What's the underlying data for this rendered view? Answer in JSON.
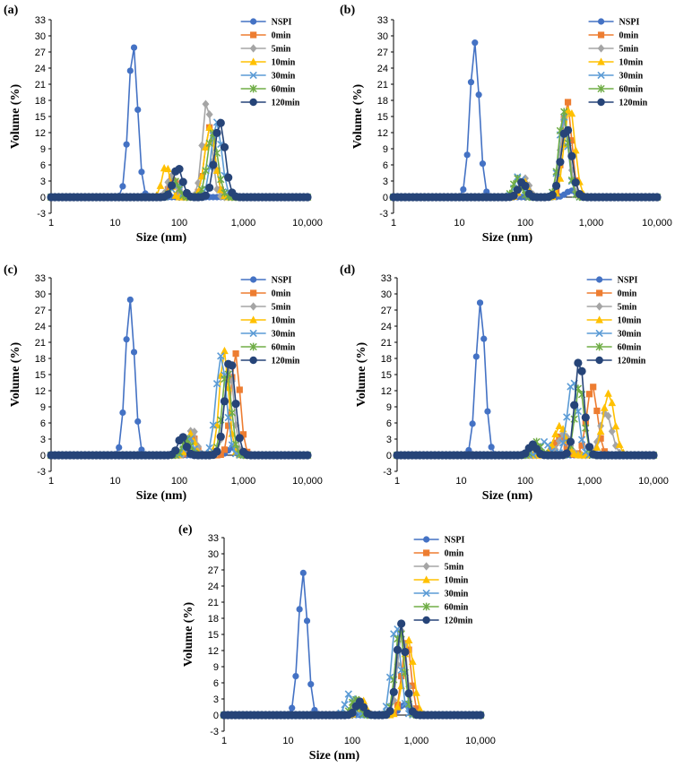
{
  "colors": {
    "NSPI": "#4472c4",
    "0min": "#ed7d31",
    "5min": "#a5a5a5",
    "10min": "#ffc000",
    "30min": "#5b9bd5",
    "60min": "#70ad47",
    "120min": "#264478"
  },
  "chart_data": [
    {
      "type": "line",
      "panel_label": "(a)",
      "xlabel": "Size (nm)",
      "ylabel": "Volume (%)",
      "xscale": "log",
      "xlim": [
        1,
        10000
      ],
      "ylim": [
        -3,
        33
      ],
      "xticks": [
        "1",
        "10",
        "100",
        "1,000",
        "10,000"
      ],
      "yticks": [
        "-3",
        "0",
        "3",
        "6",
        "9",
        "12",
        "15",
        "18",
        "21",
        "24",
        "27",
        "30",
        "33"
      ],
      "legend": [
        "NSPI",
        "0min",
        "5min",
        "10min",
        "30min",
        "60min",
        "120min"
      ],
      "series": [
        {
          "name": "NSPI",
          "marker": "circle",
          "peaks": [
            {
              "center": 19,
              "height": 28.5,
              "width": 0.07
            }
          ]
        },
        {
          "name": "0min",
          "marker": "square",
          "peaks": [
            {
              "center": 80,
              "height": 3.5,
              "width": 0.06
            },
            {
              "center": 300,
              "height": 13,
              "width": 0.08
            }
          ]
        },
        {
          "name": "5min",
          "marker": "diamond",
          "peaks": [
            {
              "center": 75,
              "height": 4,
              "width": 0.06
            },
            {
              "center": 270,
              "height": 18,
              "width": 0.07
            }
          ]
        },
        {
          "name": "10min",
          "marker": "triangle",
          "peaks": [
            {
              "center": 62,
              "height": 6,
              "width": 0.06
            },
            {
              "center": 300,
              "height": 13,
              "width": 0.08
            }
          ]
        },
        {
          "name": "30min",
          "marker": "x",
          "peaks": [
            {
              "center": 90,
              "height": 3,
              "width": 0.06
            },
            {
              "center": 380,
              "height": 14,
              "width": 0.08
            }
          ]
        },
        {
          "name": "60min",
          "marker": "star",
          "peaks": [
            {
              "center": 85,
              "height": 3,
              "width": 0.06
            },
            {
              "center": 330,
              "height": 12,
              "width": 0.08
            }
          ]
        },
        {
          "name": "120min",
          "marker": "circle",
          "peaks": [
            {
              "center": 95,
              "height": 5.5,
              "width": 0.07
            },
            {
              "center": 430,
              "height": 14,
              "width": 0.08
            }
          ]
        }
      ]
    },
    {
      "type": "line",
      "panel_label": "(b)",
      "xlabel": "Size (nm)",
      "ylabel": "Volume (%)",
      "xscale": "log",
      "xlim": [
        1,
        10000
      ],
      "ylim": [
        -3,
        33
      ],
      "xticks": [
        "1",
        "10",
        "100",
        "1,000",
        "10,000"
      ],
      "yticks": [
        "-3",
        "0",
        "3",
        "6",
        "9",
        "12",
        "15",
        "18",
        "21",
        "24",
        "27",
        "30",
        "33"
      ],
      "legend": [
        "NSPI",
        "0min",
        "5min",
        "10min",
        "30min",
        "60min",
        "120min"
      ],
      "series": [
        {
          "name": "NSPI",
          "marker": "circle",
          "peaks": [
            {
              "center": 17,
              "height": 28.8,
              "width": 0.07
            },
            {
              "center": 500,
              "height": 1.2,
              "width": 0.08
            }
          ]
        },
        {
          "name": "0min",
          "marker": "square",
          "peaks": [
            {
              "center": 90,
              "height": 3,
              "width": 0.06
            },
            {
              "center": 430,
              "height": 18,
              "width": 0.07
            }
          ]
        },
        {
          "name": "5min",
          "marker": "diamond",
          "peaks": [
            {
              "center": 100,
              "height": 3.5,
              "width": 0.06
            },
            {
              "center": 400,
              "height": 15,
              "width": 0.07
            }
          ]
        },
        {
          "name": "10min",
          "marker": "triangle",
          "peaks": [
            {
              "center": 95,
              "height": 3,
              "width": 0.06
            },
            {
              "center": 470,
              "height": 17,
              "width": 0.08
            }
          ]
        },
        {
          "name": "30min",
          "marker": "x",
          "peaks": [
            {
              "center": 80,
              "height": 4,
              "width": 0.06
            },
            {
              "center": 380,
              "height": 15,
              "width": 0.07
            }
          ]
        },
        {
          "name": "60min",
          "marker": "star",
          "peaks": [
            {
              "center": 75,
              "height": 3.5,
              "width": 0.06
            },
            {
              "center": 380,
              "height": 16,
              "width": 0.07
            }
          ]
        },
        {
          "name": "120min",
          "marker": "circle",
          "peaks": [
            {
              "center": 90,
              "height": 2.8,
              "width": 0.06
            },
            {
              "center": 420,
              "height": 13,
              "width": 0.08
            }
          ]
        }
      ]
    },
    {
      "type": "line",
      "panel_label": "(c)",
      "xlabel": "Size (nm)",
      "ylabel": "Volume (%)",
      "xscale": "log",
      "xlim": [
        1,
        10000
      ],
      "ylim": [
        -3,
        33
      ],
      "xticks": [
        "1",
        "10",
        "100",
        "1,000",
        "10,000"
      ],
      "yticks": [
        "-3",
        "0",
        "3",
        "6",
        "9",
        "12",
        "15",
        "18",
        "21",
        "24",
        "27",
        "30",
        "33"
      ],
      "legend": [
        "NSPI",
        "0min",
        "5min",
        "10min",
        "30min",
        "60min",
        "120min"
      ],
      "series": [
        {
          "name": "NSPI",
          "marker": "circle",
          "peaks": [
            {
              "center": 17,
              "height": 29,
              "width": 0.07
            },
            {
              "center": 700,
              "height": 1.5,
              "width": 0.08
            }
          ]
        },
        {
          "name": "0min",
          "marker": "square",
          "peaks": [
            {
              "center": 160,
              "height": 3.5,
              "width": 0.06
            },
            {
              "center": 750,
              "height": 19,
              "width": 0.07
            }
          ]
        },
        {
          "name": "5min",
          "marker": "diamond",
          "peaks": [
            {
              "center": 160,
              "height": 5,
              "width": 0.06
            },
            {
              "center": 600,
              "height": 17,
              "width": 0.07
            }
          ]
        },
        {
          "name": "10min",
          "marker": "triangle",
          "peaks": [
            {
              "center": 150,
              "height": 4,
              "width": 0.06
            },
            {
              "center": 500,
              "height": 19.5,
              "width": 0.07
            }
          ]
        },
        {
          "name": "30min",
          "marker": "x",
          "peaks": [
            {
              "center": 140,
              "height": 3.5,
              "width": 0.06
            },
            {
              "center": 450,
              "height": 18.5,
              "width": 0.08
            }
          ]
        },
        {
          "name": "60min",
          "marker": "star",
          "peaks": [
            {
              "center": 130,
              "height": 3,
              "width": 0.06
            },
            {
              "center": 550,
              "height": 16,
              "width": 0.07
            }
          ]
        },
        {
          "name": "120min",
          "marker": "circle",
          "peaks": [
            {
              "center": 110,
              "height": 3.5,
              "width": 0.06
            },
            {
              "center": 620,
              "height": 18,
              "width": 0.08
            }
          ]
        }
      ]
    },
    {
      "type": "line",
      "panel_label": "(d)",
      "xlabel": "Size (nm)",
      "ylabel": "Volume (%)",
      "xscale": "log",
      "xlim": [
        1,
        10000
      ],
      "ylim": [
        -3,
        33
      ],
      "xticks": [
        "1",
        "10",
        "100",
        "1,000",
        "10,000"
      ],
      "yticks": [
        "-3",
        "0",
        "3",
        "6",
        "9",
        "12",
        "15",
        "18",
        "21",
        "24",
        "27",
        "30",
        "33"
      ],
      "legend": [
        "NSPI",
        "0min",
        "5min",
        "10min",
        "30min",
        "60min",
        "120min"
      ],
      "series": [
        {
          "name": "NSPI",
          "marker": "circle",
          "peaks": [
            {
              "center": 20,
              "height": 28.5,
              "width": 0.07
            }
          ]
        },
        {
          "name": "0min",
          "marker": "square",
          "peaks": [
            {
              "center": 350,
              "height": 3.5,
              "width": 0.08
            },
            {
              "center": 1100,
              "height": 13,
              "width": 0.08
            }
          ]
        },
        {
          "name": "5min",
          "marker": "diamond",
          "peaks": [
            {
              "center": 400,
              "height": 4,
              "width": 0.08
            },
            {
              "center": 1800,
              "height": 8,
              "width": 0.09
            }
          ]
        },
        {
          "name": "10min",
          "marker": "triangle",
          "peaks": [
            {
              "center": 350,
              "height": 5.5,
              "width": 0.09
            },
            {
              "center": 2000,
              "height": 11.5,
              "width": 0.09
            }
          ]
        },
        {
          "name": "30min",
          "marker": "x",
          "peaks": [
            {
              "center": 200,
              "height": 2.5,
              "width": 0.07
            },
            {
              "center": 550,
              "height": 14,
              "width": 0.08
            }
          ]
        },
        {
          "name": "60min",
          "marker": "star",
          "peaks": [
            {
              "center": 150,
              "height": 2.5,
              "width": 0.06
            },
            {
              "center": 700,
              "height": 13,
              "width": 0.07
            }
          ]
        },
        {
          "name": "120min",
          "marker": "circle",
          "peaks": [
            {
              "center": 130,
              "height": 2,
              "width": 0.06
            },
            {
              "center": 700,
              "height": 18,
              "width": 0.07
            }
          ]
        }
      ]
    },
    {
      "type": "line",
      "panel_label": "(e)",
      "xlabel": "Size (nm)",
      "ylabel": "Volume (%)",
      "xscale": "log",
      "xlim": [
        1,
        10000
      ],
      "ylim": [
        -3,
        33
      ],
      "xticks": [
        "1",
        "10",
        "100",
        "1,000",
        "10,000"
      ],
      "yticks": [
        "-3",
        "0",
        "3",
        "6",
        "9",
        "12",
        "15",
        "18",
        "21",
        "24",
        "27",
        "30",
        "33"
      ],
      "legend": [
        "NSPI",
        "0min",
        "5min",
        "10min",
        "30min",
        "60min",
        "120min"
      ],
      "series": [
        {
          "name": "NSPI",
          "marker": "circle",
          "peaks": [
            {
              "center": 17,
              "height": 26.5,
              "width": 0.07
            },
            {
              "center": 650,
              "height": 2,
              "width": 0.08
            }
          ]
        },
        {
          "name": "0min",
          "marker": "square",
          "peaks": [
            {
              "center": 130,
              "height": 2.5,
              "width": 0.06
            },
            {
              "center": 700,
              "height": 14,
              "width": 0.07
            }
          ]
        },
        {
          "name": "5min",
          "marker": "diamond",
          "peaks": [
            {
              "center": 120,
              "height": 3,
              "width": 0.06
            },
            {
              "center": 600,
              "height": 16,
              "width": 0.07
            }
          ]
        },
        {
          "name": "10min",
          "marker": "triangle",
          "peaks": [
            {
              "center": 140,
              "height": 3,
              "width": 0.06
            },
            {
              "center": 750,
              "height": 14,
              "width": 0.08
            }
          ]
        },
        {
          "name": "30min",
          "marker": "x",
          "peaks": [
            {
              "center": 90,
              "height": 4,
              "width": 0.06
            },
            {
              "center": 480,
              "height": 17,
              "width": 0.07
            }
          ]
        },
        {
          "name": "60min",
          "marker": "star",
          "peaks": [
            {
              "center": 110,
              "height": 3,
              "width": 0.06
            },
            {
              "center": 550,
              "height": 16,
              "width": 0.07
            }
          ]
        },
        {
          "name": "120min",
          "marker": "circle",
          "peaks": [
            {
              "center": 130,
              "height": 2.5,
              "width": 0.06
            },
            {
              "center": 580,
              "height": 17,
              "width": 0.07
            }
          ]
        }
      ]
    }
  ]
}
